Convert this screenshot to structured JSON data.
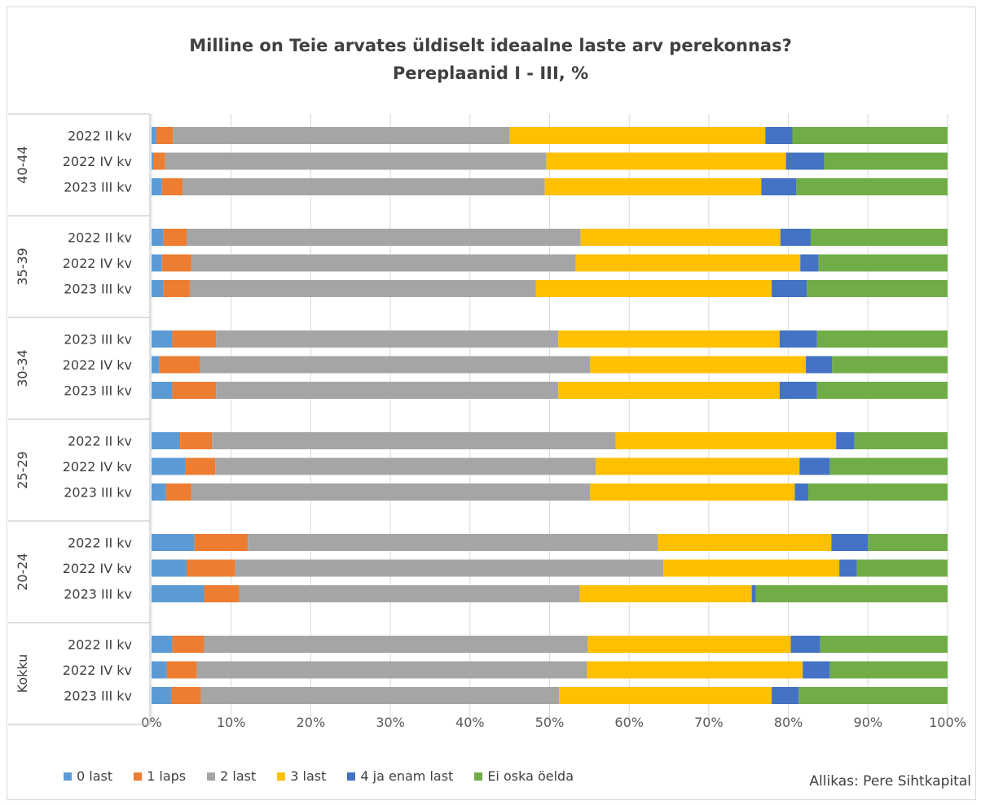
{
  "chart_data": {
    "type": "bar",
    "orientation": "horizontal",
    "stacked": "percent",
    "title": "Milline on Teie arvates üldiselt ideaalne laste arv perekonnas?",
    "subtitle": "Pereplaanid I - III, %",
    "source": "Allikas: Pere Sihtkapital",
    "xlim": [
      0,
      100
    ],
    "x_ticks": [
      "0%",
      "10%",
      "20%",
      "30%",
      "40%",
      "50%",
      "60%",
      "70%",
      "80%",
      "90%",
      "100%"
    ],
    "grid": true,
    "legend_position": "bottom-left",
    "series": [
      {
        "name": "0 last",
        "color": "#5b9bd5"
      },
      {
        "name": "1 laps",
        "color": "#ed7d31"
      },
      {
        "name": "2 last",
        "color": "#a5a5a5"
      },
      {
        "name": "3 last",
        "color": "#ffc000"
      },
      {
        "name": "4 ja enam last",
        "color": "#4472c4"
      },
      {
        "name": "Ei oska öelda",
        "color": "#70ad47"
      }
    ],
    "groups": [
      {
        "name": "40-44",
        "rows": [
          {
            "label": "2022 II kv",
            "values": [
              0.6,
              2.1,
              42.3,
              32.1,
              3.4,
              19.5
            ]
          },
          {
            "label": "2022 IV kv",
            "values": [
              0.2,
              1.5,
              47.9,
              30.1,
              4.8,
              15.5
            ]
          },
          {
            "label": "2023 III kv",
            "values": [
              1.3,
              2.6,
              45.5,
              27.2,
              4.4,
              19.0
            ]
          }
        ]
      },
      {
        "name": "35-39",
        "rows": [
          {
            "label": "2022 II kv",
            "values": [
              1.5,
              2.9,
              49.5,
              25.1,
              3.8,
              17.2
            ]
          },
          {
            "label": "2022 IV kv",
            "values": [
              1.3,
              3.7,
              48.3,
              28.2,
              2.3,
              16.2
            ]
          },
          {
            "label": "2023 III kv",
            "values": [
              1.5,
              3.3,
              43.5,
              29.6,
              4.4,
              17.7
            ]
          }
        ]
      },
      {
        "name": "30-34",
        "rows": [
          {
            "label": "2023 III kv",
            "values": [
              2.6,
              5.5,
              43.0,
              27.8,
              4.7,
              16.4
            ]
          },
          {
            "label": "2022 IV kv",
            "values": [
              1.0,
              5.1,
              49.0,
              27.1,
              3.3,
              14.5
            ]
          },
          {
            "label": "2023 III kv",
            "values": [
              2.6,
              5.5,
              43.0,
              27.8,
              4.7,
              16.4
            ]
          }
        ]
      },
      {
        "name": "25-29",
        "rows": [
          {
            "label": "2022 II kv",
            "values": [
              3.6,
              4.0,
              50.7,
              27.7,
              2.3,
              11.7
            ]
          },
          {
            "label": "2022 IV kv",
            "values": [
              4.2,
              3.8,
              47.8,
              25.6,
              3.8,
              14.8
            ]
          },
          {
            "label": "2023 III kv",
            "values": [
              1.8,
              3.2,
              50.1,
              25.7,
              1.7,
              17.5
            ]
          }
        ]
      },
      {
        "name": "20-24",
        "rows": [
          {
            "label": "2022 II kv",
            "values": [
              5.4,
              6.7,
              51.5,
              21.8,
              4.6,
              10.0
            ]
          },
          {
            "label": "2022 IV kv",
            "values": [
              4.4,
              6.1,
              53.8,
              22.1,
              2.2,
              11.4
            ]
          },
          {
            "label": "2023 III kv",
            "values": [
              6.6,
              4.4,
              42.8,
              21.6,
              0.5,
              24.1
            ]
          }
        ]
      },
      {
        "name": "Kokku",
        "rows": [
          {
            "label": "2022 II kv",
            "values": [
              2.6,
              4.0,
              48.2,
              25.5,
              3.7,
              16.0
            ]
          },
          {
            "label": "2022 IV kv",
            "values": [
              1.9,
              3.8,
              49.0,
              27.1,
              3.4,
              14.8
            ]
          },
          {
            "label": "2023 III kv",
            "values": [
              2.5,
              3.7,
              45.0,
              26.7,
              3.4,
              18.7
            ]
          }
        ]
      }
    ]
  }
}
